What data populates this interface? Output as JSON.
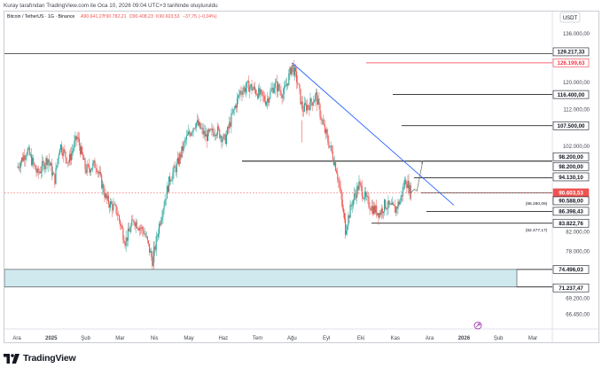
{
  "caption": "Kuray tarafından TradingView.com ile Oca 10, 2026 09:04 UTC+3 tarihinde oluşturuldu",
  "brand": {
    "name": "TradingView",
    "icon": "tradingview-logo-icon"
  },
  "colors": {
    "background": "#ffffff",
    "up_candle": "#26a69a",
    "down_candle": "#ef5350",
    "line_black": "#000000",
    "trendline_blue": "#2962ff",
    "support_zone": "#cfe9ee",
    "price_label_bg": "#ef5350",
    "ath_line_red": "#f23645"
  },
  "chart_data": {
    "type": "candlestick",
    "title": "Bitcoin / TetherUS · 1G · Binance",
    "ohlc": {
      "open": "A90.641,27",
      "high": "Y90.782,21",
      "low": "D90.408,23",
      "close": "K90.603,53",
      "change": "−37,75 (−0,04%)"
    },
    "currency": "USDT",
    "y_axis_ticks": [
      "136.000,00",
      "120.000,00",
      "112.000,00",
      "102.000,00",
      "82.000,00",
      "78.000,00",
      "69.200,00",
      "66.450,00"
    ],
    "x_axis_ticks": [
      "Ara",
      "2025",
      "Şub",
      "Mar",
      "Nis",
      "May",
      "Haz",
      "Tem",
      "Ağu",
      "Eyl",
      "Eki",
      "Kas",
      "Ara",
      "2026",
      "Şub",
      "Mar"
    ],
    "ylim": [
      64000,
      140000
    ],
    "levels": [
      {
        "label": "129.217,33",
        "value": 129217.33,
        "style": "black"
      },
      {
        "label": "126.199,63",
        "value": 126199.63,
        "style": "ath"
      },
      {
        "label": "116.400,00",
        "value": 116400,
        "style": "black"
      },
      {
        "label": "107.500,00",
        "value": 107500,
        "style": "black"
      },
      {
        "label": "98.200,00",
        "value": 98200,
        "style": "black"
      },
      {
        "label": "98.200,00",
        "value": 98200,
        "style": "black"
      },
      {
        "label": "94.130,10",
        "value": 94130.1,
        "style": "black"
      },
      {
        "label": "90.603,53",
        "value": 90603.53,
        "style": "price"
      },
      {
        "label": "17:55:09",
        "value": 88900,
        "style": "timer"
      },
      {
        "label": "90.588,00",
        "value": 90588,
        "style": "black"
      },
      {
        "label": "86.398,43",
        "value": 86398.43,
        "style": "black"
      },
      {
        "label": "83.822,76",
        "value": 83822.76,
        "style": "black"
      },
      {
        "label": "74.496,03",
        "value": 74496.03,
        "style": "black"
      },
      {
        "label": "71.237,47",
        "value": 71237.47,
        "style": "black"
      }
    ],
    "annotations": [
      {
        "label": "(88.280,09)",
        "value": 88280.09
      },
      {
        "label": "(82.477,17)",
        "value": 82477.17
      }
    ],
    "support_zone": [
      71237.47,
      74496.03
    ],
    "trendline": {
      "from": [
        8,
        126199.63
      ],
      "to": [
        12.7,
        87800
      ]
    },
    "price_path": [
      [
        0.0,
        96500
      ],
      [
        0.3,
        101000
      ],
      [
        0.6,
        95000
      ],
      [
        0.9,
        99000
      ],
      [
        1.1,
        93500
      ],
      [
        1.25,
        102500
      ],
      [
        1.5,
        98000
      ],
      [
        1.75,
        104500
      ],
      [
        2.0,
        96000
      ],
      [
        2.3,
        97500
      ],
      [
        2.6,
        89000
      ],
      [
        2.9,
        86500
      ],
      [
        3.15,
        80000
      ],
      [
        3.4,
        84500
      ],
      [
        3.7,
        82000
      ],
      [
        3.95,
        76000
      ],
      [
        4.15,
        84000
      ],
      [
        4.45,
        94000
      ],
      [
        4.65,
        97000
      ],
      [
        4.9,
        103500
      ],
      [
        5.2,
        108500
      ],
      [
        5.5,
        104500
      ],
      [
        5.8,
        106500
      ],
      [
        6.05,
        103500
      ],
      [
        6.25,
        110000
      ],
      [
        6.5,
        117500
      ],
      [
        6.75,
        119000
      ],
      [
        7.0,
        117000
      ],
      [
        7.25,
        114500
      ],
      [
        7.5,
        119500
      ],
      [
        7.75,
        116500
      ],
      [
        7.9,
        121500
      ],
      [
        8.0,
        125500
      ],
      [
        8.15,
        120500
      ],
      [
        8.3,
        112000
      ],
      [
        8.5,
        113500
      ],
      [
        8.7,
        116000
      ],
      [
        8.9,
        107500
      ],
      [
        9.1,
        102000
      ],
      [
        9.3,
        96000
      ],
      [
        9.45,
        88000
      ],
      [
        9.55,
        82500
      ],
      [
        9.75,
        88500
      ],
      [
        9.95,
        92500
      ],
      [
        10.15,
        89000
      ],
      [
        10.35,
        87000
      ],
      [
        10.55,
        86000
      ],
      [
        10.7,
        88000
      ],
      [
        10.85,
        87300
      ],
      [
        11.0,
        86800
      ],
      [
        11.15,
        89000
      ],
      [
        11.3,
        93800
      ],
      [
        11.45,
        90600
      ]
    ],
    "projection": {
      "from": [
        11.45,
        90600
      ],
      "to": [
        11.8,
        98200
      ]
    }
  }
}
